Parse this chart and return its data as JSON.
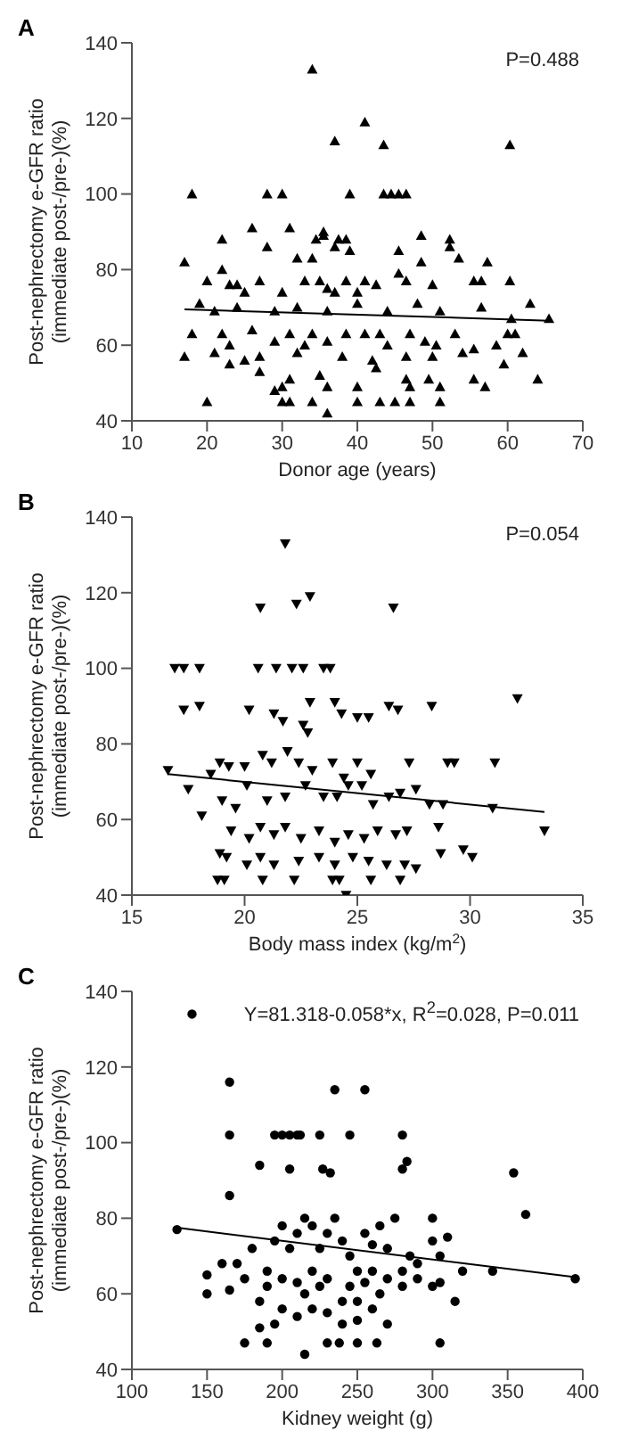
{
  "chart_data": [
    {
      "type": "scatter",
      "title": "A",
      "xlabel": "Donor age (years)",
      "ylabel": "Post-nephrectomy e-GFR ratio\n(immediate post-/pre-)(%)",
      "annotations": [
        "P=0.488"
      ],
      "xlim": [
        10,
        70
      ],
      "xticks": [
        10,
        20,
        30,
        40,
        50,
        60,
        70
      ],
      "ylim": [
        40,
        140
      ],
      "yticks": [
        40,
        60,
        80,
        100,
        120,
        140
      ],
      "series": [
        {
          "type": "scatter",
          "marker": "triangle",
          "color": "#000000",
          "x": [
            34,
            41,
            37,
            43.5,
            60.3,
            18,
            28,
            30,
            39,
            43.5,
            44.5,
            45.5,
            46.5,
            31,
            26,
            35.5,
            35.5,
            48.5,
            22,
            34.5,
            37.5,
            38.5,
            52.3,
            28,
            37,
            39,
            52.3,
            45.5,
            32,
            34,
            53.5,
            17,
            22,
            48.5,
            57.3,
            45.5,
            20,
            23,
            24,
            27,
            33,
            35,
            36,
            38.5,
            41,
            42.5,
            46.5,
            50,
            55.5,
            56.5,
            60.3,
            19,
            25,
            30,
            37,
            40,
            48,
            63,
            21,
            24,
            29,
            32,
            36,
            40,
            44,
            51,
            56.5,
            65.5,
            60.5,
            18,
            22,
            26,
            31,
            34,
            38.5,
            41,
            43,
            47,
            53,
            60,
            61,
            23,
            29,
            33,
            36,
            44,
            49,
            50.5,
            58.5,
            17,
            21,
            25,
            27,
            32,
            38,
            42,
            46.5,
            50,
            54,
            55.5,
            62,
            59.5,
            23,
            27,
            31,
            35,
            42.5,
            46.5,
            49.5,
            55.5,
            64,
            29,
            30,
            36,
            40,
            47,
            51,
            57,
            20,
            30,
            31,
            34,
            40,
            43,
            45,
            47,
            51,
            36
          ],
          "values": [
            133,
            119,
            114,
            113,
            113,
            100,
            100,
            100,
            100,
            100,
            100,
            100,
            100,
            91,
            91,
            90,
            89,
            89,
            88,
            88,
            88,
            88,
            88,
            86,
            86,
            85,
            86,
            85,
            83,
            83,
            83,
            82,
            80,
            82,
            82,
            79,
            77,
            76,
            76,
            77,
            77,
            77,
            75,
            77,
            77,
            76,
            77,
            76,
            77,
            77,
            77,
            71,
            74,
            74,
            74,
            74,
            71,
            71,
            69,
            70,
            69,
            70,
            69,
            71,
            69,
            69,
            70,
            67,
            67,
            63,
            63,
            64,
            63,
            63,
            63,
            63,
            63,
            63,
            63,
            63,
            63,
            60,
            61,
            60,
            61,
            60,
            61,
            60,
            60,
            57,
            58,
            56,
            57,
            58,
            57,
            56,
            57,
            57,
            58,
            59,
            58,
            55,
            55,
            53,
            51,
            52,
            54,
            51,
            51,
            51,
            51,
            48,
            49,
            49,
            49,
            49,
            49,
            49,
            45,
            45,
            45,
            45,
            45,
            45,
            45,
            45,
            45,
            42
          ]
        },
        {
          "type": "line",
          "color": "#000000",
          "x": [
            17,
            65.5
          ],
          "values": [
            69.5,
            66.5
          ]
        }
      ]
    },
    {
      "type": "scatter",
      "title": "B",
      "xlabel": "Body mass index (kg/m$^{2}$)",
      "ylabel": "Post-nephrectomy e-GFR ratio\n(immediate post-/pre-)(%)",
      "annotations": [
        "P=0.054"
      ],
      "xlim": [
        15,
        35
      ],
      "xticks": [
        15,
        20,
        25,
        30,
        35
      ],
      "ylim": [
        40,
        140
      ],
      "yticks": [
        40,
        60,
        80,
        100,
        120,
        140
      ],
      "series": [
        {
          "type": "scatter",
          "marker": "triangle-down",
          "color": "#000000",
          "x": [
            21.8,
            22.9,
            20.7,
            22.3,
            26.6,
            16.9,
            17.3,
            18,
            20.6,
            21.4,
            22.1,
            22.6,
            23.5,
            23.8,
            17.3,
            18,
            22.9,
            24,
            26.4,
            26.8,
            28.3,
            32.1,
            20.2,
            21.3,
            24.3,
            25,
            25.5,
            22.6,
            22.8,
            21.7,
            16.6,
            17.5,
            18.5,
            18.9,
            19.3,
            20,
            20.8,
            21.2,
            21.9,
            22.4,
            23,
            23.9,
            24.4,
            25,
            25.6,
            27.3,
            29,
            29.3,
            31.1,
            18.1,
            19,
            19.6,
            20.1,
            21,
            21.8,
            22.7,
            23.5,
            24.1,
            24.6,
            25.2,
            25.7,
            26.4,
            26.9,
            27.6,
            28.2,
            28.8,
            19.4,
            20.2,
            20.7,
            21.3,
            21.8,
            22.5,
            23.3,
            24,
            24.6,
            25.3,
            25.9,
            26.7,
            27.2,
            28.6,
            18.9,
            19.2,
            20.1,
            20.7,
            21.3,
            22.4,
            23.3,
            24,
            24.8,
            25.5,
            26.3,
            27.1,
            27.6,
            28.7,
            29.7,
            30.1,
            18.8,
            19.1,
            20.8,
            22.2,
            23.9,
            24.2,
            25.6,
            26.9,
            24.5,
            31,
            33.3
          ],
          "values": [
            133,
            119,
            116,
            117,
            116,
            100,
            100,
            100,
            100,
            100,
            100,
            100,
            100,
            100,
            89,
            90,
            91,
            91,
            90,
            89,
            90,
            92,
            89,
            88,
            88,
            87,
            87,
            85,
            83,
            86,
            73,
            68,
            72,
            75,
            74,
            74,
            77,
            75,
            78,
            75,
            73,
            75,
            71,
            75,
            72,
            75,
            75,
            75,
            75,
            61,
            65,
            63,
            69,
            65,
            66,
            69,
            66,
            66,
            69,
            69,
            64,
            66,
            67,
            68,
            64,
            64,
            57,
            55,
            58,
            56,
            58,
            55,
            57,
            54,
            56,
            55,
            57,
            56,
            57,
            58,
            51,
            50,
            48,
            50,
            48,
            49,
            50,
            48,
            50,
            49,
            48,
            48,
            47,
            51,
            52,
            50,
            44,
            44,
            44,
            44,
            44,
            44,
            44,
            44,
            40,
            63,
            57
          ]
        },
        {
          "type": "line",
          "color": "#000000",
          "x": [
            16.6,
            33.3
          ],
          "values": [
            72,
            62
          ]
        }
      ]
    },
    {
      "type": "scatter",
      "title": "C",
      "xlabel": "Kidney weight (g)",
      "ylabel": "Post-nephrectomy e-GFR ratio\n(immediate post-/pre-)(%)",
      "annotations": [
        "Y=81.318-0.058*x, R$^{2}$=0.028, P=0.011"
      ],
      "xlim": [
        100,
        400
      ],
      "xticks": [
        100,
        150,
        200,
        250,
        300,
        350,
        400
      ],
      "ylim": [
        40,
        140
      ],
      "yticks": [
        40,
        60,
        80,
        100,
        120,
        140
      ],
      "series": [
        {
          "type": "scatter",
          "marker": "circle",
          "color": "#000000",
          "x": [
            140,
            165,
            165,
            195,
            200,
            205,
            210,
            212,
            225,
            245,
            235,
            255,
            280,
            185,
            205,
            227,
            232,
            280,
            283,
            354,
            362,
            130,
            150,
            150,
            165,
            160,
            170,
            180,
            190,
            195,
            200,
            205,
            210,
            215,
            220,
            225,
            230,
            235,
            240,
            245,
            250,
            255,
            260,
            265,
            270,
            275,
            280,
            285,
            290,
            300,
            300,
            305,
            310,
            320,
            340,
            395,
            165,
            175,
            185,
            190,
            200,
            210,
            215,
            220,
            225,
            230,
            240,
            245,
            250,
            255,
            260,
            265,
            270,
            280,
            290,
            300,
            305,
            315,
            200,
            210,
            220,
            230,
            240,
            250,
            260,
            270,
            185,
            195,
            175,
            190,
            230,
            238,
            250,
            263,
            305,
            215
          ],
          "values": [
            134,
            116,
            102,
            102,
            102,
            102,
            102,
            102,
            102,
            102,
            114,
            114,
            102,
            94,
            93,
            93,
            92,
            93,
            95,
            92,
            81,
            77,
            65,
            60,
            86,
            68,
            68,
            72,
            66,
            74,
            78,
            72,
            76,
            80,
            78,
            72,
            76,
            80,
            74,
            70,
            66,
            76,
            73,
            78,
            72,
            80,
            66,
            70,
            68,
            80,
            74,
            70,
            75,
            66,
            66,
            64,
            61,
            64,
            58,
            62,
            64,
            63,
            60,
            66,
            62,
            64,
            58,
            62,
            58,
            63,
            66,
            60,
            64,
            62,
            64,
            62,
            63,
            58,
            56,
            54,
            56,
            55,
            52,
            53,
            56,
            52,
            51,
            52,
            47,
            47,
            47,
            47,
            47,
            47,
            47,
            44
          ]
        },
        {
          "type": "line",
          "color": "#000000",
          "x": [
            130,
            395
          ],
          "values": [
            77.5,
            64.4
          ]
        }
      ]
    }
  ]
}
